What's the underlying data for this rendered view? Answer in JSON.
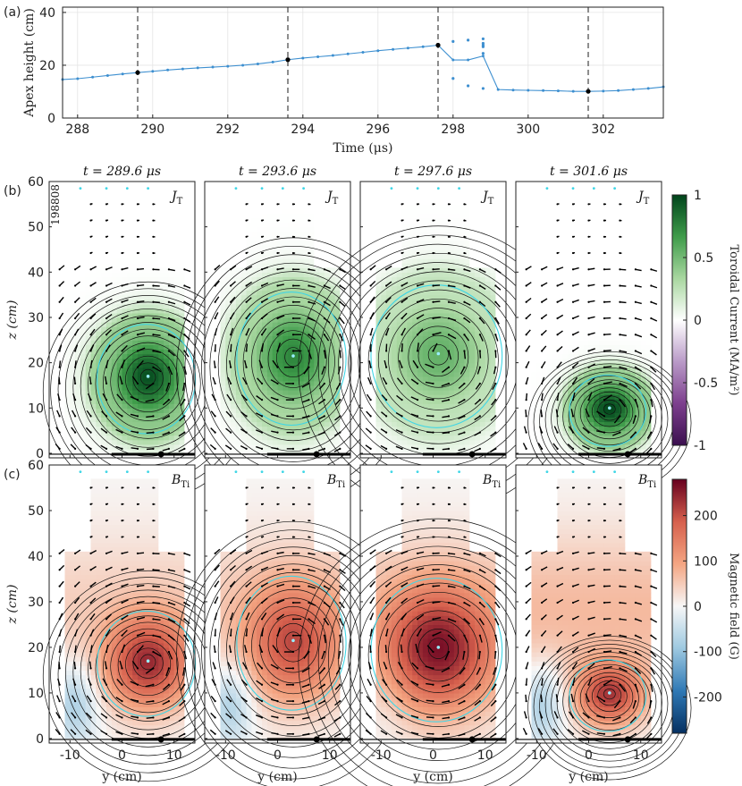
{
  "chart_data": [
    {
      "id": "a",
      "type": "line",
      "panel_label": "(a)",
      "xlabel": "Time (μs)",
      "ylabel": "Apex height (cm)",
      "xlim": [
        287.6,
        303.6
      ],
      "ylim": [
        0,
        42
      ],
      "xticks": [
        288,
        290,
        292,
        294,
        296,
        298,
        300,
        302
      ],
      "yticks": [
        0,
        20,
        40
      ],
      "line_color": "#3d8fd0",
      "series": [
        {
          "name": "apex height",
          "x": [
            287.6,
            288.0,
            288.4,
            288.8,
            289.2,
            289.6,
            290.0,
            290.4,
            290.8,
            291.2,
            291.6,
            292.0,
            292.4,
            292.8,
            293.2,
            293.6,
            294.0,
            294.4,
            294.8,
            295.2,
            295.6,
            296.0,
            296.4,
            296.8,
            297.2,
            297.6,
            298.0,
            298.4,
            298.8,
            299.2,
            299.6,
            300.0,
            300.4,
            300.8,
            301.2,
            301.6,
            302.0,
            302.4,
            302.8,
            303.2,
            303.6
          ],
          "y": [
            14.6,
            14.9,
            15.5,
            16.1,
            16.7,
            17.2,
            17.7,
            18.2,
            18.6,
            19.0,
            19.3,
            19.6,
            20.0,
            20.5,
            21.2,
            22.1,
            22.7,
            23.2,
            23.7,
            24.3,
            24.9,
            25.5,
            26.0,
            26.5,
            27.0,
            27.6,
            22.0,
            22.0,
            23.5,
            10.8,
            10.6,
            10.5,
            10.4,
            10.3,
            10.1,
            10.1,
            10.2,
            10.4,
            10.8,
            11.2,
            11.8
          ]
        }
      ],
      "extra_points": {
        "x": [
          298.0,
          298.4,
          298.8,
          298.8,
          298.8,
          298.8,
          298.8,
          298.0,
          298.4,
          298.8
        ],
        "y": [
          29,
          29.5,
          30,
          28.3,
          27.6,
          27,
          24.5,
          15,
          12.2,
          11.2
        ]
      },
      "vlines": [
        289.6,
        293.6,
        297.6,
        301.6
      ],
      "highlight_points": {
        "x": [
          289.6,
          293.6,
          297.6,
          301.6
        ],
        "y": [
          17.2,
          22.1,
          27.6,
          10.1
        ]
      }
    },
    {
      "id": "b",
      "type": "heatmap",
      "panel_label": "(b)",
      "shot_label": "198808",
      "field_label": "J",
      "field_sub": "T",
      "ylabel": "z (cm)",
      "ylim": [
        -1,
        60
      ],
      "yticks": [
        0,
        10,
        20,
        30,
        40,
        50,
        60
      ],
      "colorbar": {
        "label": "Toroidal Current (MA/m²)",
        "range": [
          -1,
          1
        ],
        "ticks": [
          1,
          0.5,
          0,
          -0.5,
          -1
        ],
        "tick_labels": [
          "1",
          "0.5",
          "0",
          "-0.5",
          "-1"
        ],
        "colors": [
          "#3b0f4f",
          "#7d3f8e",
          "#b99ac7",
          "#ffffff",
          "#a8d7a0",
          "#3f9c4a",
          "#00441b"
        ]
      },
      "frames": [
        {
          "title": "t = 289.6 μs",
          "center": [
            5,
            17
          ],
          "rx": 9,
          "rz": 11.5,
          "peak": 0.95
        },
        {
          "title": "t = 293.6 μs",
          "center": [
            3,
            21.5
          ],
          "rx": 10,
          "rz": 14,
          "peak": 0.75
        },
        {
          "title": "t = 297.6 μs",
          "center": [
            1,
            22
          ],
          "rx": 12,
          "rz": 15,
          "peak": 0.55
        },
        {
          "title": "t = 301.6 μs",
          "center": [
            4,
            10
          ],
          "rx": 7,
          "rz": 7.5,
          "peak": 0.98
        }
      ]
    },
    {
      "id": "c",
      "type": "heatmap",
      "panel_label": "(c)",
      "field_label": "B",
      "field_sub": "Ti",
      "ylabel": "z (cm)",
      "xlabel": "y (cm)",
      "xlim": [
        -14,
        14
      ],
      "xticks": [
        -10,
        0,
        10
      ],
      "ylim": [
        -1,
        60
      ],
      "yticks": [
        0,
        10,
        20,
        30,
        40,
        50,
        60
      ],
      "colorbar": {
        "label": "Magnetic field (G)",
        "range": [
          -280,
          280
        ],
        "ticks": [
          200,
          100,
          0,
          -100,
          -200
        ],
        "tick_labels": [
          "200",
          "100",
          "0",
          "-100",
          "-200"
        ],
        "colors": [
          "#053061",
          "#2f79b5",
          "#9dc8e0",
          "#f7f7f7",
          "#f4a582",
          "#d6604d",
          "#67001f"
        ]
      },
      "frames": [
        {
          "title": "t = 289.6 μs",
          "center": [
            5,
            17
          ],
          "rx": 9,
          "rz": 11,
          "peak": 240
        },
        {
          "title": "t = 293.6 μs",
          "center": [
            3,
            21.5
          ],
          "rx": 10,
          "rz": 14,
          "peak": 210
        },
        {
          "title": "t = 297.6 μs",
          "center": [
            1,
            20
          ],
          "rx": 12,
          "rz": 15,
          "peak": 265
        },
        {
          "title": "t = 301.6 μs",
          "center": [
            4,
            10
          ],
          "rx": 7,
          "rz": 7.5,
          "peak": 230
        }
      ]
    }
  ]
}
